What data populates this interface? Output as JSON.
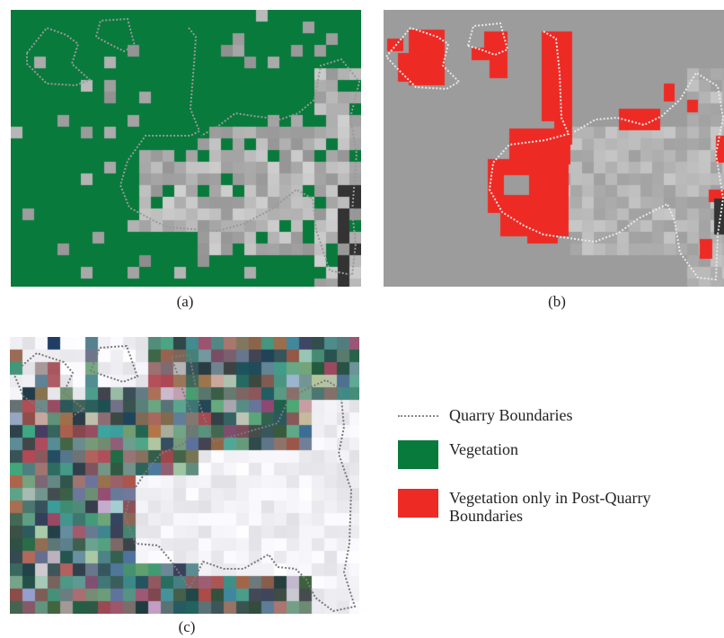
{
  "panels": [
    {
      "id": "a",
      "caption": "(a)"
    },
    {
      "id": "b",
      "caption": "(b)"
    },
    {
      "id": "c",
      "caption": "(c)"
    }
  ],
  "legend": {
    "boundary_label": "Quarry Boundaries",
    "vegetation_label": "Vegetation",
    "post_quarry_label": "Vegetation only in Post-Quarry Boundaries"
  },
  "colors": {
    "vegetation": "#087a3c",
    "post_quarry": "#ee2a24",
    "background_gray": "#9c9c9c",
    "boundary": "#8a8a8a"
  }
}
